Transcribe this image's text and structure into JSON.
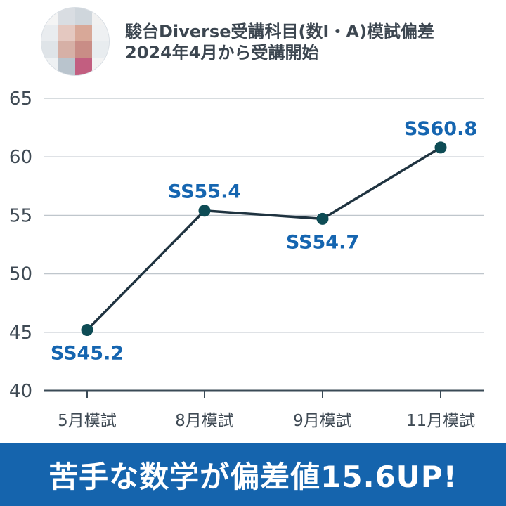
{
  "header": {
    "title_line1": "駿台Diverse受講科目(数Ⅰ・A)模試偏差",
    "title_line2": "2024年4月から受講開始"
  },
  "chart_data": {
    "type": "line",
    "categories": [
      "5月模試",
      "8月模試",
      "9月模試",
      "11月模試"
    ],
    "values": [
      45.2,
      55.4,
      54.7,
      60.8
    ],
    "data_labels": [
      "SS45.2",
      "SS55.4",
      "SS54.7",
      "SS60.8"
    ],
    "ylim": [
      40,
      65
    ],
    "yticks": [
      40,
      45,
      50,
      55,
      60,
      65
    ],
    "grid": true,
    "title": "",
    "xlabel": "",
    "ylabel": ""
  },
  "colors": {
    "line": "#1f3340",
    "point": "#0e4c55",
    "label": "#1565b0",
    "grid": "#bfc6cc",
    "axis": "#3a4a56",
    "tick_text": "#3f4a54",
    "banner_bg": "#1564ad",
    "banner_text": "#ffffff"
  },
  "banner": {
    "text": "苦手な数学が偏差値15.6UP!"
  }
}
